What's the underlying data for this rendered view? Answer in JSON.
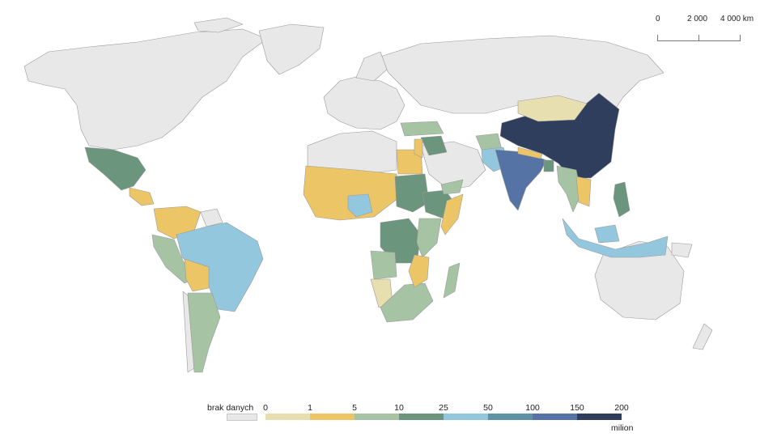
{
  "scale_bar": {
    "labels": [
      "0",
      "2 000",
      "4 000 km"
    ]
  },
  "legend": {
    "no_data_label": "brak danych",
    "no_data_color": "#e8e8e8",
    "breaks": [
      "0",
      "1",
      "5",
      "10",
      "25",
      "50",
      "100",
      "150",
      "200"
    ],
    "classes": [
      {
        "range": "0–1",
        "color": "#e8dfb0"
      },
      {
        "range": "1–5",
        "color": "#ecc666"
      },
      {
        "range": "5–10",
        "color": "#a6c4a4"
      },
      {
        "range": "10–25",
        "color": "#6b957c"
      },
      {
        "range": "25–50",
        "color": "#92c7de"
      },
      {
        "range": "50–100",
        "color": "#5e93a6"
      },
      {
        "range": "100–150",
        "color": "#5573a5"
      },
      {
        "range": "150–200",
        "color": "#2f3e5c"
      }
    ],
    "unit": "milion"
  },
  "map_colors": {
    "ocean": "#ffffff",
    "no_data": "#e8e8e8",
    "border": "#9a9a9a"
  }
}
